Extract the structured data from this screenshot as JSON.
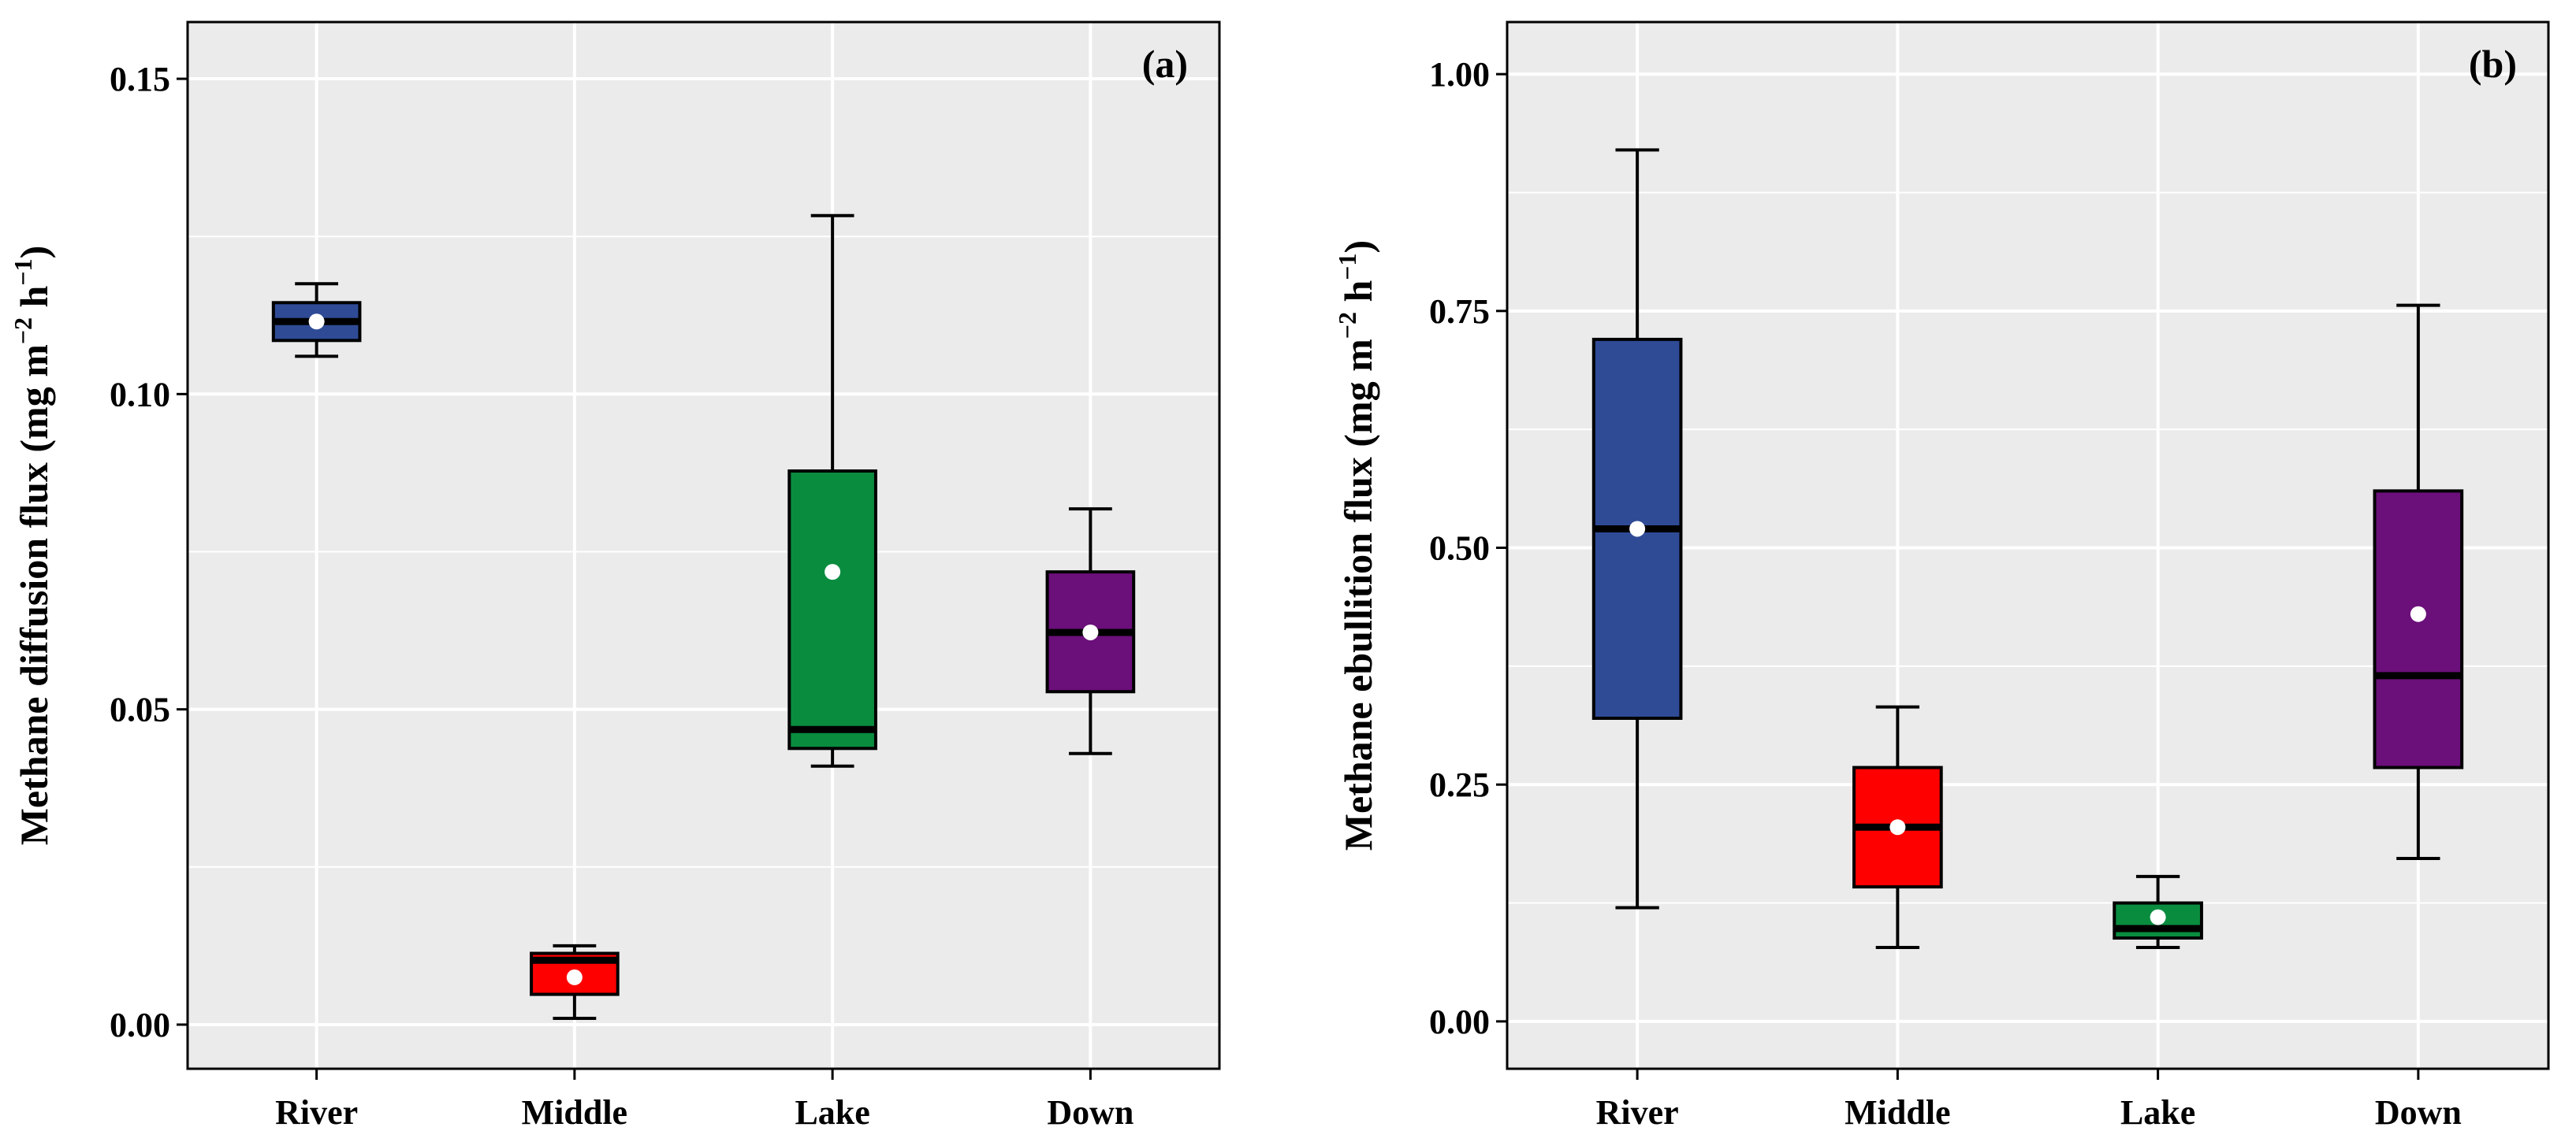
{
  "chart_data": [
    {
      "type": "box",
      "panel_label": "(a)",
      "ylabel": {
        "main": "Methane diffusion flux (mg m",
        "sup1": "−2",
        "mid": " h",
        "sup2": "−1",
        "end": ")"
      },
      "categories": [
        "River",
        "Middle",
        "Lake",
        "Down"
      ],
      "ylim": [
        -0.007,
        0.159
      ],
      "yticks": [
        0.0,
        0.05,
        0.1,
        0.15
      ],
      "ytick_labels": [
        "0.00",
        "0.05",
        "0.10",
        "0.15"
      ],
      "grid": true,
      "boxes": [
        {
          "name": "River",
          "whisker_low": 0.106,
          "q1": 0.1085,
          "median": 0.1115,
          "q3": 0.1145,
          "whisker_high": 0.1175,
          "mean": 0.1115,
          "color": "#2f4b96"
        },
        {
          "name": "Middle",
          "whisker_low": 0.001,
          "q1": 0.0048,
          "median": 0.0102,
          "q3": 0.0113,
          "whisker_high": 0.0125,
          "mean": 0.0075,
          "color": "#ff0000"
        },
        {
          "name": "Lake",
          "whisker_low": 0.041,
          "q1": 0.0438,
          "median": 0.0468,
          "q3": 0.0878,
          "whisker_high": 0.1283,
          "mean": 0.0718,
          "color": "#0a8c3f"
        },
        {
          "name": "Down",
          "whisker_low": 0.043,
          "q1": 0.0528,
          "median": 0.0622,
          "q3": 0.0718,
          "whisker_high": 0.0818,
          "mean": 0.0622,
          "color": "#6b0f7a"
        }
      ]
    },
    {
      "type": "box",
      "panel_label": "(b)",
      "ylabel": {
        "main": "Methane ebullition flux (mg m",
        "sup1": "−2",
        "mid": " h",
        "sup2": "−1",
        "end": ")"
      },
      "categories": [
        "River",
        "Middle",
        "Lake",
        "Down"
      ],
      "ylim": [
        -0.05,
        1.055
      ],
      "yticks": [
        0.0,
        0.25,
        0.5,
        0.75,
        1.0
      ],
      "ytick_labels": [
        "0.00",
        "0.25",
        "0.50",
        "0.75",
        "1.00"
      ],
      "grid": true,
      "boxes": [
        {
          "name": "River",
          "whisker_low": 0.12,
          "q1": 0.32,
          "median": 0.52,
          "q3": 0.72,
          "whisker_high": 0.92,
          "mean": 0.52,
          "color": "#2f4b96"
        },
        {
          "name": "Middle",
          "whisker_low": 0.078,
          "q1": 0.142,
          "median": 0.205,
          "q3": 0.268,
          "whisker_high": 0.332,
          "mean": 0.205,
          "color": "#ff0000"
        },
        {
          "name": "Lake",
          "whisker_low": 0.078,
          "q1": 0.088,
          "median": 0.098,
          "q3": 0.125,
          "whisker_high": 0.153,
          "mean": 0.11,
          "color": "#0a8c3f"
        },
        {
          "name": "Down",
          "whisker_low": 0.172,
          "q1": 0.268,
          "median": 0.365,
          "q3": 0.56,
          "whisker_high": 0.756,
          "mean": 0.43,
          "color": "#6b0f7a"
        }
      ]
    }
  ]
}
